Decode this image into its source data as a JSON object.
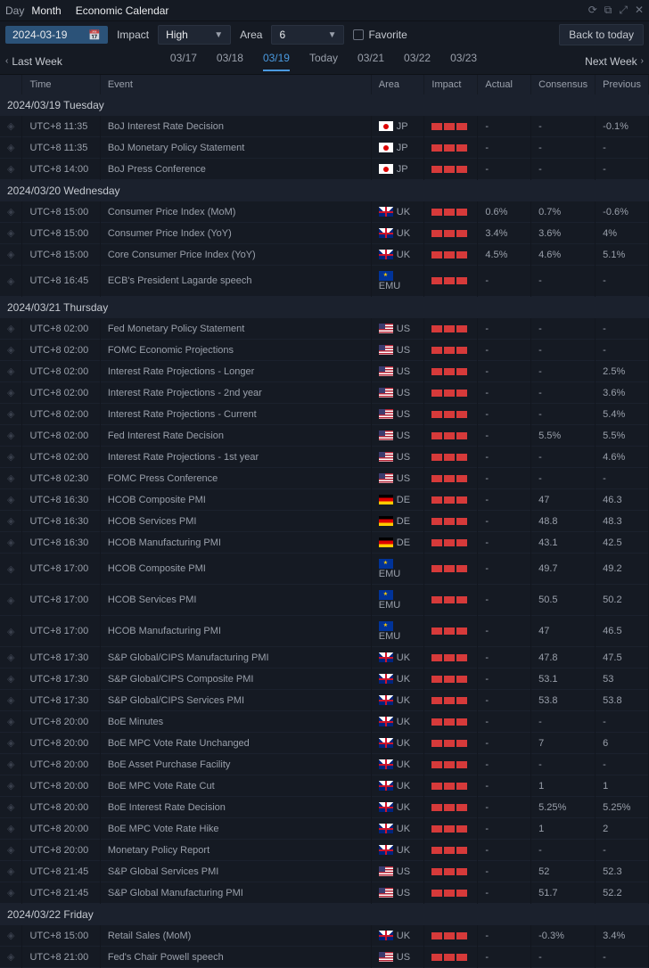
{
  "topbar": {
    "view_day": "Day",
    "view_month": "Month",
    "title": "Economic Calendar"
  },
  "filters": {
    "date": "2024-03-19",
    "impact_label": "Impact",
    "impact_value": "High",
    "area_label": "Area",
    "area_value": "6",
    "favorite_label": "Favorite",
    "back_to_today": "Back to today"
  },
  "weeknav": {
    "last_week": "Last Week",
    "next_week": "Next Week",
    "dates": [
      "03/17",
      "03/18",
      "03/19",
      "Today",
      "03/21",
      "03/22",
      "03/23"
    ],
    "active_index": 2
  },
  "columns": {
    "time": "Time",
    "event": "Event",
    "area": "Area",
    "impact": "Impact",
    "actual": "Actual",
    "consensus": "Consensus",
    "previous": "Previous"
  },
  "days": [
    {
      "header": "2024/03/19 Tuesday",
      "rows": [
        {
          "time": "UTC+8 11:35",
          "event": "BoJ Interest Rate Decision",
          "area": "JP",
          "actual": "-",
          "consensus": "-",
          "previous": "-0.1%"
        },
        {
          "time": "UTC+8 11:35",
          "event": "BoJ Monetary Policy Statement",
          "area": "JP",
          "actual": "-",
          "consensus": "-",
          "previous": "-"
        },
        {
          "time": "UTC+8 14:00",
          "event": "BoJ Press Conference",
          "area": "JP",
          "actual": "-",
          "consensus": "-",
          "previous": "-"
        }
      ]
    },
    {
      "header": "2024/03/20 Wednesday",
      "rows": [
        {
          "time": "UTC+8 15:00",
          "event": "Consumer Price Index (MoM)",
          "area": "UK",
          "actual": "0.6%",
          "consensus": "0.7%",
          "previous": "-0.6%"
        },
        {
          "time": "UTC+8 15:00",
          "event": "Consumer Price Index (YoY)",
          "area": "UK",
          "actual": "3.4%",
          "consensus": "3.6%",
          "previous": "4%"
        },
        {
          "time": "UTC+8 15:00",
          "event": "Core Consumer Price Index (YoY)",
          "area": "UK",
          "actual": "4.5%",
          "consensus": "4.6%",
          "previous": "5.1%"
        },
        {
          "time": "UTC+8 16:45",
          "event": "ECB's President Lagarde speech",
          "area": "EMU",
          "actual": "-",
          "consensus": "-",
          "previous": "-"
        }
      ]
    },
    {
      "header": "2024/03/21 Thursday",
      "rows": [
        {
          "time": "UTC+8 02:00",
          "event": "Fed Monetary Policy Statement",
          "area": "US",
          "actual": "-",
          "consensus": "-",
          "previous": "-"
        },
        {
          "time": "UTC+8 02:00",
          "event": "FOMC Economic Projections",
          "area": "US",
          "actual": "-",
          "consensus": "-",
          "previous": "-"
        },
        {
          "time": "UTC+8 02:00",
          "event": "Interest Rate Projections - Longer",
          "area": "US",
          "actual": "-",
          "consensus": "-",
          "previous": "2.5%"
        },
        {
          "time": "UTC+8 02:00",
          "event": "Interest Rate Projections - 2nd year",
          "area": "US",
          "actual": "-",
          "consensus": "-",
          "previous": "3.6%"
        },
        {
          "time": "UTC+8 02:00",
          "event": "Interest Rate Projections - Current",
          "area": "US",
          "actual": "-",
          "consensus": "-",
          "previous": "5.4%"
        },
        {
          "time": "UTC+8 02:00",
          "event": "Fed Interest Rate Decision",
          "area": "US",
          "actual": "-",
          "consensus": "5.5%",
          "previous": "5.5%"
        },
        {
          "time": "UTC+8 02:00",
          "event": "Interest Rate Projections - 1st year",
          "area": "US",
          "actual": "-",
          "consensus": "-",
          "previous": "4.6%"
        },
        {
          "time": "UTC+8 02:30",
          "event": "FOMC Press Conference",
          "area": "US",
          "actual": "-",
          "consensus": "-",
          "previous": "-"
        },
        {
          "time": "UTC+8 16:30",
          "event": "HCOB Composite PMI",
          "area": "DE",
          "actual": "-",
          "consensus": "47",
          "previous": "46.3"
        },
        {
          "time": "UTC+8 16:30",
          "event": "HCOB Services PMI",
          "area": "DE",
          "actual": "-",
          "consensus": "48.8",
          "previous": "48.3"
        },
        {
          "time": "UTC+8 16:30",
          "event": "HCOB Manufacturing PMI",
          "area": "DE",
          "actual": "-",
          "consensus": "43.1",
          "previous": "42.5"
        },
        {
          "time": "UTC+8 17:00",
          "event": "HCOB Composite PMI",
          "area": "EMU",
          "actual": "-",
          "consensus": "49.7",
          "previous": "49.2"
        },
        {
          "time": "UTC+8 17:00",
          "event": "HCOB Services PMI",
          "area": "EMU",
          "actual": "-",
          "consensus": "50.5",
          "previous": "50.2"
        },
        {
          "time": "UTC+8 17:00",
          "event": "HCOB Manufacturing PMI",
          "area": "EMU",
          "actual": "-",
          "consensus": "47",
          "previous": "46.5"
        },
        {
          "time": "UTC+8 17:30",
          "event": "S&P Global/CIPS Manufacturing PMI",
          "area": "UK",
          "actual": "-",
          "consensus": "47.8",
          "previous": "47.5"
        },
        {
          "time": "UTC+8 17:30",
          "event": "S&P Global/CIPS Composite PMI",
          "area": "UK",
          "actual": "-",
          "consensus": "53.1",
          "previous": "53"
        },
        {
          "time": "UTC+8 17:30",
          "event": "S&P Global/CIPS Services PMI",
          "area": "UK",
          "actual": "-",
          "consensus": "53.8",
          "previous": "53.8"
        },
        {
          "time": "UTC+8 20:00",
          "event": "BoE Minutes",
          "area": "UK",
          "actual": "-",
          "consensus": "-",
          "previous": "-"
        },
        {
          "time": "UTC+8 20:00",
          "event": "BoE MPC Vote Rate Unchanged",
          "area": "UK",
          "actual": "-",
          "consensus": "7",
          "previous": "6"
        },
        {
          "time": "UTC+8 20:00",
          "event": "BoE Asset Purchase Facility",
          "area": "UK",
          "actual": "-",
          "consensus": "-",
          "previous": "-"
        },
        {
          "time": "UTC+8 20:00",
          "event": "BoE MPC Vote Rate Cut",
          "area": "UK",
          "actual": "-",
          "consensus": "1",
          "previous": "1"
        },
        {
          "time": "UTC+8 20:00",
          "event": "BoE Interest Rate Decision",
          "area": "UK",
          "actual": "-",
          "consensus": "5.25%",
          "previous": "5.25%"
        },
        {
          "time": "UTC+8 20:00",
          "event": "BoE MPC Vote Rate Hike",
          "area": "UK",
          "actual": "-",
          "consensus": "1",
          "previous": "2"
        },
        {
          "time": "UTC+8 20:00",
          "event": "Monetary Policy Report",
          "area": "UK",
          "actual": "-",
          "consensus": "-",
          "previous": "-"
        },
        {
          "time": "UTC+8 21:45",
          "event": "S&P Global Services PMI",
          "area": "US",
          "actual": "-",
          "consensus": "52",
          "previous": "52.3"
        },
        {
          "time": "UTC+8 21:45",
          "event": "S&P Global Manufacturing PMI",
          "area": "US",
          "actual": "-",
          "consensus": "51.7",
          "previous": "52.2"
        }
      ]
    },
    {
      "header": "2024/03/22 Friday",
      "rows": [
        {
          "time": "UTC+8 15:00",
          "event": "Retail Sales (MoM)",
          "area": "UK",
          "actual": "-",
          "consensus": "-0.3%",
          "previous": "3.4%"
        },
        {
          "time": "UTC+8 21:00",
          "event": "Fed's Chair Powell speech",
          "area": "US",
          "actual": "-",
          "consensus": "-",
          "previous": "-"
        }
      ]
    }
  ],
  "flag_class": {
    "JP": "flag-jp",
    "UK": "flag-uk",
    "US": "flag-us",
    "DE": "flag-de",
    "EMU": "flag-emu"
  }
}
